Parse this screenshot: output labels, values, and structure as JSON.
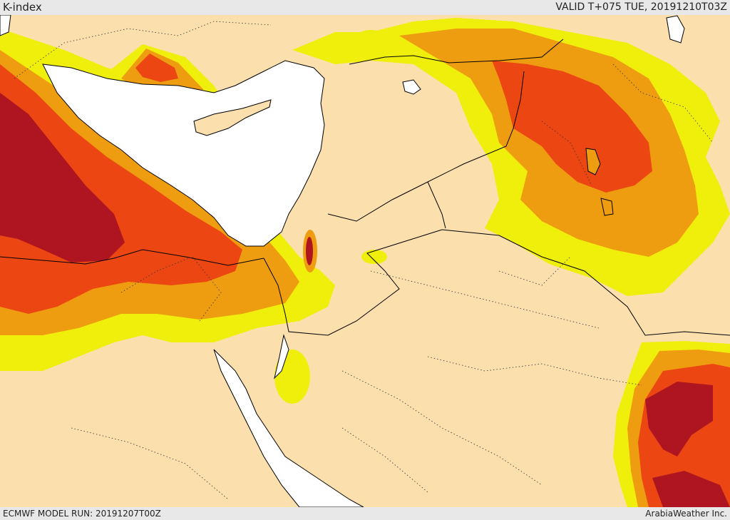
{
  "header": {
    "title": "K-index",
    "valid": "VALID T+075 TUE, 20191210T03Z"
  },
  "footer": {
    "model_run": "ECMWF MODEL RUN: 20191207T00Z",
    "credit": "ArabiaWeather Inc."
  },
  "colors": {
    "background": "#fbdfad",
    "sea": "#ffffff",
    "k_index_bands": [
      "#f0ef0c",
      "#ef9d10",
      "#ec4612",
      "#ae1520"
    ]
  }
}
